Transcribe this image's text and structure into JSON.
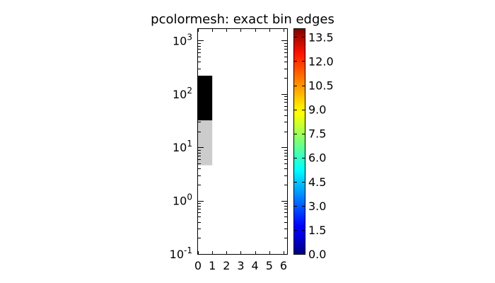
{
  "chart_data": {
    "type": "heatmap",
    "title": "pcolormesh: exact bin edges",
    "xlabel": "",
    "ylabel": "",
    "x_scale": "linear",
    "y_scale": "log",
    "xlim": [
      0,
      6.25
    ],
    "ylim": [
      0.1,
      1650
    ],
    "x_ticks": [
      {
        "value": 0,
        "label": "0"
      },
      {
        "value": 1,
        "label": "1"
      },
      {
        "value": 2,
        "label": "2"
      },
      {
        "value": 3,
        "label": "3"
      },
      {
        "value": 4,
        "label": "4"
      },
      {
        "value": 5,
        "label": "5"
      },
      {
        "value": 6,
        "label": "6"
      }
    ],
    "y_ticks": [
      {
        "value": 0.1,
        "base": "10",
        "exp": "-1"
      },
      {
        "value": 1,
        "base": "10",
        "exp": "0"
      },
      {
        "value": 10,
        "base": "10",
        "exp": "1"
      },
      {
        "value": 100,
        "base": "10",
        "exp": "2"
      },
      {
        "value": 1000,
        "base": "10",
        "exp": "3"
      }
    ],
    "cells": [
      {
        "x0": 0,
        "x1": 1,
        "y0": 4.6,
        "y1": 32,
        "color": "#cccccc"
      },
      {
        "x0": 0,
        "x1": 1,
        "y0": 32,
        "y1": 220,
        "color": "#000000"
      }
    ],
    "colorbar": {
      "colormap": "jet",
      "min": 0.0,
      "max": 14.0,
      "ticks": [
        "0.0",
        "1.5",
        "3.0",
        "4.5",
        "6.0",
        "7.5",
        "9.0",
        "10.5",
        "12.0",
        "13.5"
      ],
      "tick_values": [
        0.0,
        1.5,
        3.0,
        4.5,
        6.0,
        7.5,
        9.0,
        10.5,
        12.0,
        13.5
      ]
    }
  }
}
